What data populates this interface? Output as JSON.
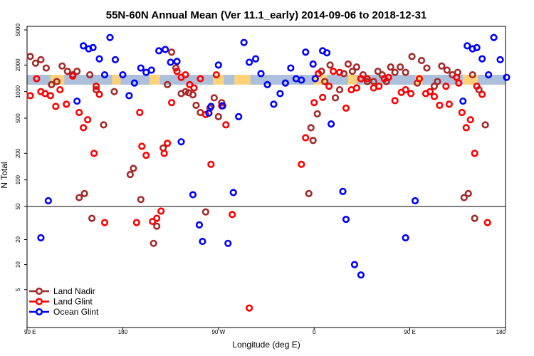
{
  "chart_data": {
    "type": "scatter",
    "title": "55N-60N Annual Mean (Ver 11.1_early)   2014-09-06 to 2018-12-31",
    "xlabel": "Longitude (deg E)",
    "ylabel": "N Total",
    "y_scale": "log (upper panel 50-5000, lower panel 2-50)",
    "ylim": [
      2,
      5000
    ],
    "x_ticks": [
      "90 E",
      "180",
      "90 W",
      "0",
      "90 E",
      "180"
    ],
    "x_tick_values": [
      90,
      180,
      270,
      360,
      450,
      540
    ],
    "xlim": [
      90,
      540
    ],
    "y_ticks": [
      5000,
      2000,
      1000,
      500,
      200,
      100,
      50,
      20,
      10,
      5
    ],
    "y_tick_labels": [
      "5000",
      "2000",
      "1000",
      "500",
      "200",
      "100",
      "50",
      "20",
      "10",
      "5"
    ],
    "band": {
      "y_low": 1200,
      "y_high": 1550,
      "colors": [
        "#ffd27a",
        "#a9bfe0"
      ]
    },
    "legend_position": "bottom-left",
    "series": [
      {
        "name": "Land Nadir",
        "color": "#a52a2a",
        "points": [
          [
            93,
            2500
          ],
          [
            98,
            2100
          ],
          [
            103,
            2300
          ],
          [
            108,
            1850
          ],
          [
            113,
            1200
          ],
          [
            118,
            1300
          ],
          [
            123,
            1950
          ],
          [
            128,
            1700
          ],
          [
            133,
            1550
          ],
          [
            137,
            1700
          ],
          [
            139,
            63
          ],
          [
            144,
            70
          ],
          [
            149,
            1550
          ],
          [
            151,
            36
          ],
          [
            155,
            1050
          ],
          [
            162,
            420
          ],
          [
            172,
            1000
          ],
          [
            187,
            115
          ],
          [
            190,
            135
          ],
          [
            197,
            60
          ],
          [
            209,
            18
          ],
          [
            212,
            29
          ],
          [
            218,
            230
          ],
          [
            222,
            1200
          ],
          [
            226,
            2800
          ],
          [
            230,
            1850
          ],
          [
            235,
            950
          ],
          [
            239,
            1000
          ],
          [
            242,
            970
          ],
          [
            246,
            920
          ],
          [
            249,
            700
          ],
          [
            253,
            580
          ],
          [
            258,
            43
          ],
          [
            262,
            650
          ],
          [
            266,
            850
          ],
          [
            270,
            520
          ],
          [
            273,
            750
          ],
          [
            355,
            70
          ],
          [
            357,
            390
          ],
          [
            359,
            280
          ],
          [
            363,
            560
          ],
          [
            367,
            1700
          ],
          [
            370,
            1300
          ],
          [
            375,
            2000
          ],
          [
            380,
            850
          ],
          [
            384,
            1050
          ],
          [
            388,
            1600
          ],
          [
            392,
            2050
          ],
          [
            396,
            1700
          ],
          [
            400,
            1900
          ],
          [
            406,
            1550
          ],
          [
            410,
            1300
          ],
          [
            416,
            1300
          ],
          [
            420,
            1700
          ],
          [
            424,
            1550
          ],
          [
            428,
            1300
          ],
          [
            432,
            1900
          ],
          [
            436,
            1650
          ],
          [
            441,
            1900
          ],
          [
            446,
            1650
          ],
          [
            452,
            2500
          ],
          [
            457,
            1250
          ],
          [
            461,
            2250
          ],
          [
            466,
            1850
          ],
          [
            473,
            1150
          ],
          [
            476,
            1300
          ],
          [
            480,
            1950
          ],
          [
            485,
            1750
          ],
          [
            490,
            1550
          ],
          [
            495,
            1650
          ],
          [
            501,
            63
          ],
          [
            505,
            70
          ],
          [
            509,
            1550
          ],
          [
            511,
            36
          ],
          [
            515,
            1050
          ],
          [
            521,
            420
          ]
        ]
      },
      {
        "name": "Land Glint",
        "color": "#ff0000",
        "points": [
          [
            93,
            900
          ],
          [
            99,
            1400
          ],
          [
            103,
            1000
          ],
          [
            107,
            950
          ],
          [
            112,
            900
          ],
          [
            117,
            680
          ],
          [
            121,
            1050
          ],
          [
            127,
            720
          ],
          [
            133,
            1500
          ],
          [
            139,
            580
          ],
          [
            143,
            390
          ],
          [
            147,
            480
          ],
          [
            153,
            200
          ],
          [
            155,
            1150
          ],
          [
            158,
            930
          ],
          [
            163,
            32
          ],
          [
            193,
            32
          ],
          [
            196,
            580
          ],
          [
            198,
            240
          ],
          [
            202,
            190
          ],
          [
            208,
            33
          ],
          [
            212,
            36
          ],
          [
            216,
            44
          ],
          [
            219,
            200
          ],
          [
            222,
            260
          ],
          [
            226,
            750
          ],
          [
            231,
            1700
          ],
          [
            235,
            1450
          ],
          [
            239,
            1550
          ],
          [
            243,
            1200
          ],
          [
            247,
            1100
          ],
          [
            253,
            1400
          ],
          [
            258,
            550
          ],
          [
            263,
            150
          ],
          [
            268,
            1550
          ],
          [
            273,
            690
          ],
          [
            277,
            420
          ],
          [
            283,
            40
          ],
          [
            299,
            3
          ],
          [
            348,
            150
          ],
          [
            352,
            300
          ],
          [
            360,
            750
          ],
          [
            364,
            1600
          ],
          [
            368,
            860
          ],
          [
            374,
            1150
          ],
          [
            378,
            1700
          ],
          [
            384,
            1650
          ],
          [
            390,
            650
          ],
          [
            395,
            1050
          ],
          [
            400,
            1100
          ],
          [
            404,
            1400
          ],
          [
            410,
            1400
          ],
          [
            416,
            1100
          ],
          [
            421,
            1150
          ],
          [
            426,
            1400
          ],
          [
            430,
            1450
          ],
          [
            436,
            790
          ],
          [
            442,
            980
          ],
          [
            446,
            1050
          ],
          [
            451,
            950
          ],
          [
            459,
            1400
          ],
          [
            465,
            950
          ],
          [
            469,
            1000
          ],
          [
            473,
            880
          ],
          [
            478,
            700
          ],
          [
            484,
            1150
          ],
          [
            487,
            720
          ],
          [
            494,
            1450
          ],
          [
            496,
            1250
          ],
          [
            499,
            580
          ],
          [
            503,
            390
          ],
          [
            507,
            480
          ],
          [
            511,
            200
          ],
          [
            513,
            1150
          ],
          [
            518,
            930
          ],
          [
            523,
            32
          ]
        ]
      },
      {
        "name": "Ocean Glint",
        "color": "#0000ff",
        "points": [
          [
            103,
            21
          ],
          [
            110,
            58
          ],
          [
            137,
            780
          ],
          [
            143,
            3300
          ],
          [
            148,
            3050
          ],
          [
            152,
            3150
          ],
          [
            158,
            2350
          ],
          [
            163,
            1550
          ],
          [
            168,
            4100
          ],
          [
            173,
            2300
          ],
          [
            180,
            1550
          ],
          [
            186,
            900
          ],
          [
            191,
            1250
          ],
          [
            197,
            1850
          ],
          [
            202,
            1650
          ],
          [
            207,
            1750
          ],
          [
            214,
            2900
          ],
          [
            220,
            3000
          ],
          [
            225,
            2150
          ],
          [
            231,
            2200
          ],
          [
            235,
            270
          ],
          [
            246,
            68
          ],
          [
            252,
            30
          ],
          [
            255,
            19
          ],
          [
            261,
            570
          ],
          [
            263,
            680
          ],
          [
            270,
            2000
          ],
          [
            274,
            690
          ],
          [
            279,
            18
          ],
          [
            284,
            72
          ],
          [
            289,
            520
          ],
          [
            294,
            3600
          ],
          [
            299,
            2150
          ],
          [
            305,
            2350
          ],
          [
            310,
            1600
          ],
          [
            316,
            1200
          ],
          [
            322,
            720
          ],
          [
            328,
            950
          ],
          [
            333,
            1250
          ],
          [
            338,
            1850
          ],
          [
            343,
            1400
          ],
          [
            348,
            1350
          ],
          [
            352,
            2800
          ],
          [
            359,
            2050
          ],
          [
            361,
            1400
          ],
          [
            368,
            2900
          ],
          [
            372,
            2750
          ],
          [
            376,
            430
          ],
          [
            387,
            74
          ],
          [
            390,
            35
          ],
          [
            398,
            10
          ],
          [
            404,
            7.5
          ],
          [
            446,
            21
          ],
          [
            455,
            58
          ],
          [
            500,
            780
          ],
          [
            504,
            3300
          ],
          [
            509,
            3050
          ],
          [
            513,
            3150
          ],
          [
            518,
            2350
          ],
          [
            524,
            1550
          ],
          [
            529,
            4100
          ],
          [
            535,
            2300
          ],
          [
            541,
            1450
          ]
        ]
      }
    ]
  }
}
